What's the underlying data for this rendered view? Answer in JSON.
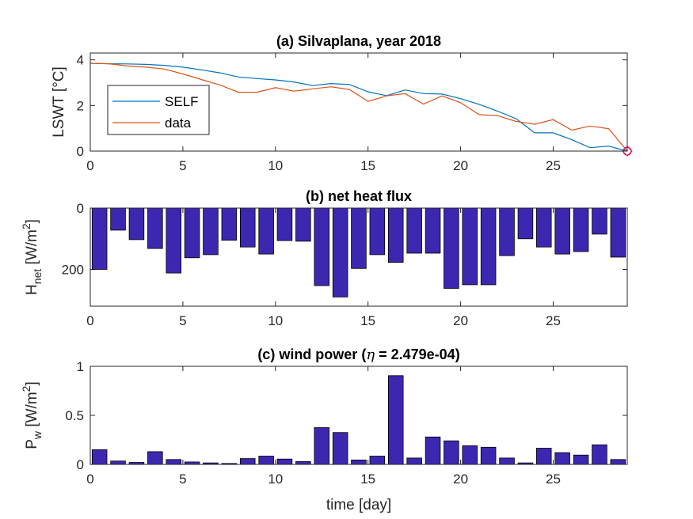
{
  "colors": {
    "self_line": "#0072BD",
    "data_line": "#D95319",
    "bar_fill": "#3C28B0",
    "bar_edge": "#000000",
    "end_marker": "#E0115F"
  },
  "chart_data": [
    {
      "id": "a",
      "type": "line",
      "title": "(a) Silvaplana, year 2018",
      "ylabel": "LSWT [°C]",
      "xlabel": "",
      "xlim": [
        0,
        29
      ],
      "ylim": [
        0,
        4.3
      ],
      "xticks": [
        0,
        5,
        10,
        15,
        20,
        25
      ],
      "yticks": [
        0,
        2,
        4
      ],
      "legend": {
        "placement": "inside-left",
        "entries": [
          "SELF",
          "data"
        ]
      },
      "x": [
        0,
        1,
        2,
        3,
        4,
        5,
        6,
        7,
        8,
        9,
        10,
        11,
        12,
        13,
        14,
        15,
        16,
        17,
        18,
        19,
        20,
        21,
        22,
        23,
        24,
        25,
        26,
        27,
        28,
        29
      ],
      "series": [
        {
          "name": "SELF",
          "values": [
            3.85,
            3.83,
            3.82,
            3.8,
            3.76,
            3.68,
            3.56,
            3.43,
            3.25,
            3.18,
            3.12,
            3.03,
            2.87,
            2.96,
            2.92,
            2.6,
            2.43,
            2.68,
            2.52,
            2.5,
            2.3,
            2.05,
            1.75,
            1.42,
            0.8,
            0.8,
            0.5,
            0.15,
            0.22,
            0.0
          ]
        },
        {
          "name": "data",
          "values": [
            3.85,
            3.83,
            3.73,
            3.68,
            3.6,
            3.38,
            3.14,
            2.9,
            2.58,
            2.58,
            2.78,
            2.63,
            2.73,
            2.82,
            2.7,
            2.18,
            2.42,
            2.52,
            2.06,
            2.42,
            2.12,
            1.6,
            1.55,
            1.3,
            1.18,
            1.38,
            0.92,
            1.1,
            0.98,
            0.0
          ]
        }
      ],
      "end_marker": {
        "x": 29,
        "y": 0
      }
    },
    {
      "id": "b",
      "type": "bar",
      "title": "(b) net heat flux",
      "ylabel": "H",
      "ylabel_sub": "net",
      "ylabel_unit_pre": " [W/m",
      "ylabel_unit_sup": "2",
      "ylabel_unit_post": "]",
      "xlabel": "",
      "xlim": [
        0,
        29
      ],
      "ylim": [
        0,
        320
      ],
      "y_reversed": true,
      "xticks": [
        0,
        5,
        10,
        15,
        20,
        25
      ],
      "yticks": [
        0,
        200
      ],
      "categories": [
        0.5,
        1.5,
        2.5,
        3.5,
        4.5,
        5.5,
        6.5,
        7.5,
        8.5,
        9.5,
        10.5,
        11.5,
        12.5,
        13.5,
        14.5,
        15.5,
        16.5,
        17.5,
        18.5,
        19.5,
        20.5,
        21.5,
        22.5,
        23.5,
        24.5,
        25.5,
        26.5,
        27.5,
        28.5
      ],
      "values": [
        200,
        72,
        103,
        132,
        212,
        162,
        152,
        105,
        127,
        150,
        106,
        108,
        253,
        290,
        197,
        152,
        177,
        147,
        147,
        262,
        250,
        250,
        155,
        100,
        127,
        150,
        142,
        85,
        160
      ]
    },
    {
      "id": "c",
      "type": "bar",
      "title_pre": "(c) wind power (",
      "title_eta": "η",
      "title_post": " = 2.479e-04)",
      "ylabel": "P",
      "ylabel_sub": "w",
      "ylabel_unit_pre": " [W/m",
      "ylabel_unit_sup": "2",
      "ylabel_unit_post": "]",
      "xlabel": "time [day]",
      "xlim": [
        0,
        29
      ],
      "ylim": [
        0,
        1
      ],
      "xticks": [
        0,
        5,
        10,
        15,
        20,
        25
      ],
      "yticks": [
        0,
        0.5,
        1
      ],
      "categories": [
        0.5,
        1.5,
        2.5,
        3.5,
        4.5,
        5.5,
        6.5,
        7.5,
        8.5,
        9.5,
        10.5,
        11.5,
        12.5,
        13.5,
        14.5,
        15.5,
        16.5,
        17.5,
        18.5,
        19.5,
        20.5,
        21.5,
        22.5,
        23.5,
        24.5,
        25.5,
        26.5,
        27.5,
        28.5
      ],
      "values": [
        0.15,
        0.035,
        0.02,
        0.13,
        0.05,
        0.025,
        0.015,
        0.01,
        0.06,
        0.085,
        0.055,
        0.03,
        0.375,
        0.325,
        0.045,
        0.085,
        0.905,
        0.065,
        0.28,
        0.24,
        0.19,
        0.175,
        0.065,
        0.015,
        0.165,
        0.12,
        0.095,
        0.2,
        0.05
      ]
    }
  ]
}
